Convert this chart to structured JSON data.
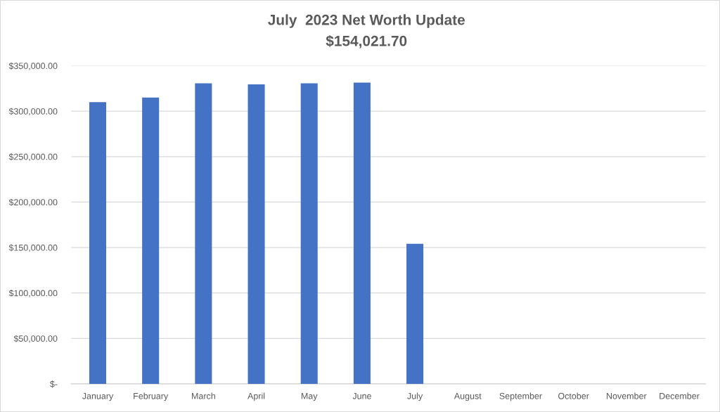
{
  "chart_data": {
    "type": "bar",
    "title": "July  2023 Net Worth Update",
    "subtitle": "$154,021.70",
    "categories": [
      "January",
      "February",
      "March",
      "April",
      "May",
      "June",
      "July",
      "August",
      "September",
      "October",
      "November",
      "December"
    ],
    "values": [
      310000,
      315000,
      330700,
      329500,
      330700,
      331400,
      154021.7,
      null,
      null,
      null,
      null,
      null
    ],
    "color": "#4472c4",
    "ylim": [
      0,
      350000
    ],
    "yticks": [
      {
        "value": 0,
        "label": "$-"
      },
      {
        "value": 50000,
        "label": "$50,000.00"
      },
      {
        "value": 100000,
        "label": "$100,000.00"
      },
      {
        "value": 150000,
        "label": "$150,000.00"
      },
      {
        "value": 200000,
        "label": "$200,000.00"
      },
      {
        "value": 250000,
        "label": "$250,000.00"
      },
      {
        "value": 300000,
        "label": "$300,000.00"
      },
      {
        "value": 350000,
        "label": "$350,000.00"
      }
    ],
    "grid": "y"
  }
}
